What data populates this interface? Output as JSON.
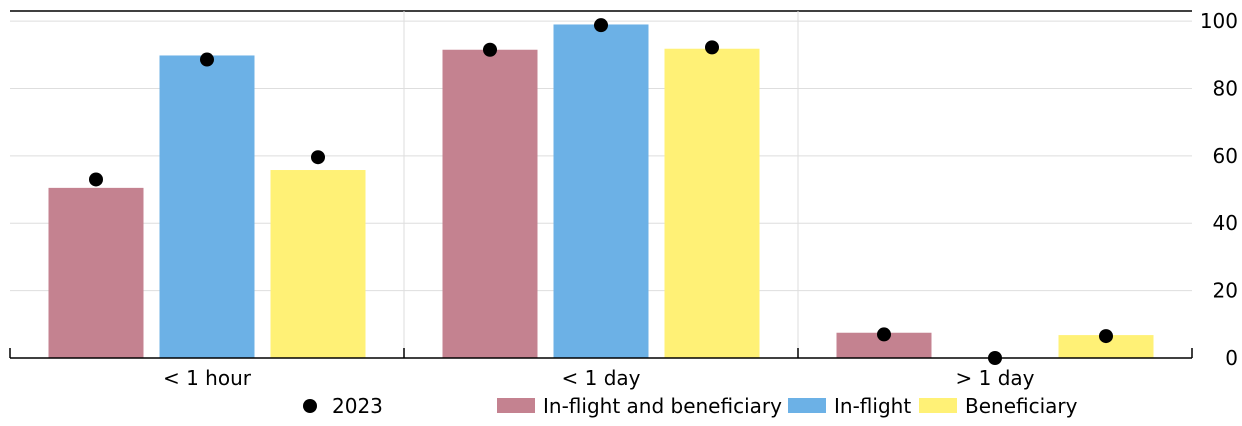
{
  "chart_data": {
    "type": "bar",
    "categories": [
      "< 1 hour",
      "< 1 day",
      "> 1 day"
    ],
    "series": [
      {
        "name": "In-flight and beneficiary",
        "color": "#c48290",
        "values": [
          50.5,
          91.5,
          7.5
        ]
      },
      {
        "name": "In-flight",
        "color": "#6cb1e6",
        "values": [
          89.8,
          99.0,
          0.0
        ]
      },
      {
        "name": "Beneficiary",
        "color": "#fff176",
        "values": [
          55.8,
          91.8,
          6.8
        ]
      }
    ],
    "overlay": {
      "name": "2023",
      "color": "#000000",
      "values": [
        [
          53.0,
          88.6,
          59.6
        ],
        [
          91.5,
          98.8,
          92.2
        ],
        [
          7.0,
          0.0,
          6.5
        ]
      ]
    },
    "y_axis": {
      "position": "right",
      "ticks": [
        0,
        20,
        40,
        60,
        80,
        100
      ],
      "ylim": [
        0,
        103
      ]
    },
    "grid": true,
    "legend_position": "bottom"
  }
}
